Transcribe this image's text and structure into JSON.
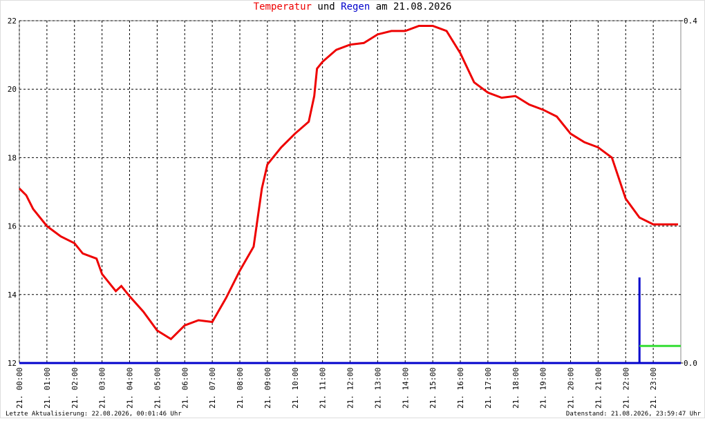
{
  "chart_data": {
    "type": "line",
    "title_connector": "und",
    "title_date": "am 21.08.2026",
    "footer_left": "Letzte Aktualisierung: 22.08.2026, 00:01:46 Uhr",
    "footer_right": "Datenstand: 21.08.2026, 23:59:47 Uhr",
    "grid": true,
    "xlim": [
      0,
      24
    ],
    "xticks": [
      {
        "value": 0,
        "label": "21. 00:00"
      },
      {
        "value": 1,
        "label": "21. 01:00"
      },
      {
        "value": 2,
        "label": "21. 02:00"
      },
      {
        "value": 3,
        "label": "21. 03:00"
      },
      {
        "value": 4,
        "label": "21. 04:00"
      },
      {
        "value": 5,
        "label": "21. 05:00"
      },
      {
        "value": 6,
        "label": "21. 06:00"
      },
      {
        "value": 7,
        "label": "21. 07:00"
      },
      {
        "value": 8,
        "label": "21. 08:00"
      },
      {
        "value": 9,
        "label": "21. 09:00"
      },
      {
        "value": 10,
        "label": "21. 10:00"
      },
      {
        "value": 11,
        "label": "21. 11:00"
      },
      {
        "value": 12,
        "label": "21. 12:00"
      },
      {
        "value": 13,
        "label": "21. 13:00"
      },
      {
        "value": 14,
        "label": "21. 14:00"
      },
      {
        "value": 15,
        "label": "21. 15:00"
      },
      {
        "value": 16,
        "label": "21. 16:00"
      },
      {
        "value": 17,
        "label": "21. 17:00"
      },
      {
        "value": 18,
        "label": "21. 18:00"
      },
      {
        "value": 19,
        "label": "21. 19:00"
      },
      {
        "value": 20,
        "label": "21. 20:00"
      },
      {
        "value": 21,
        "label": "21. 21:00"
      },
      {
        "value": 22,
        "label": "21. 22:00"
      },
      {
        "value": 23,
        "label": "21. 23:00"
      }
    ],
    "ylim": [
      12,
      22
    ],
    "yticks": [
      12,
      14,
      16,
      18,
      20,
      22
    ],
    "y2lim": [
      0,
      0.4
    ],
    "y2ticks": [
      {
        "value": 0,
        "label": "0.0"
      },
      {
        "value": 0.4,
        "label": "0.4"
      }
    ],
    "series": [
      {
        "name": "Temperatur",
        "color": "#ee0000",
        "x": [
          0,
          0.25,
          0.5,
          1,
          1.5,
          2,
          2.3,
          2.8,
          3,
          3.5,
          3.7,
          4,
          4.5,
          5,
          5.5,
          6,
          6.5,
          7,
          7.5,
          8,
          8.5,
          8.8,
          9,
          9.5,
          10,
          10.5,
          10.7,
          10.8,
          11,
          11.5,
          12,
          12.5,
          13,
          13.5,
          14,
          14.5,
          15,
          15.5,
          16,
          16.5,
          17,
          17.5,
          18,
          18.5,
          19,
          19.5,
          20,
          20.5,
          21,
          21.5,
          22,
          22.5,
          23,
          23.9
        ],
        "values": [
          17.1,
          16.9,
          16.5,
          16.0,
          15.7,
          15.5,
          15.2,
          15.05,
          14.6,
          14.1,
          14.25,
          13.95,
          13.5,
          12.95,
          12.7,
          13.1,
          13.25,
          13.2,
          13.9,
          14.7,
          15.4,
          17.1,
          17.8,
          18.3,
          18.7,
          19.05,
          19.8,
          20.6,
          20.8,
          21.15,
          21.3,
          21.35,
          21.6,
          21.7,
          21.7,
          21.85,
          21.85,
          21.7,
          21.05,
          20.2,
          19.9,
          19.75,
          19.8,
          19.55,
          19.4,
          19.2,
          18.7,
          18.45,
          18.3,
          18.0,
          16.8,
          16.25,
          16.05,
          16.05
        ]
      },
      {
        "name": "Regen",
        "color": "#0000cc",
        "axis": "y2",
        "x": [
          0,
          22.5,
          22.5,
          22.5,
          24
        ],
        "values": [
          0,
          0,
          0.1,
          0,
          0
        ]
      },
      {
        "color": "#33dd33",
        "axis": "y2",
        "x": [
          22.5,
          24
        ],
        "values": [
          0.02,
          0.02
        ]
      }
    ]
  }
}
